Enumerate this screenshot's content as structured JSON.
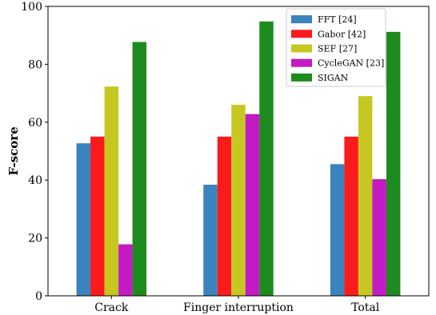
{
  "chart_data": {
    "type": "bar",
    "title": "",
    "xlabel": "",
    "ylabel": "F-score",
    "ylim": [
      0,
      100
    ],
    "yticks": [
      0,
      20,
      40,
      60,
      80,
      100
    ],
    "grid": false,
    "legend_position": "top-right",
    "categories": [
      "Crack",
      "Finger interruption",
      "Total"
    ],
    "series": [
      {
        "name": "FFT [24]",
        "color": "#3a83bd",
        "values": [
          52.7,
          38.4,
          45.5
        ]
      },
      {
        "name": "Gabor [42]",
        "color": "#fb1b1b",
        "values": [
          55.0,
          55.0,
          55.0
        ]
      },
      {
        "name": "SEF [27]",
        "color": "#c7c721",
        "values": [
          72.3,
          66.0,
          69.0
        ]
      },
      {
        "name": "CycleGAN [23]",
        "color": "#c31bc3",
        "values": [
          17.8,
          62.8,
          40.3
        ]
      },
      {
        "name": "SIGAN",
        "color": "#1e8b1e",
        "values": [
          87.7,
          94.8,
          91.2
        ]
      }
    ]
  }
}
